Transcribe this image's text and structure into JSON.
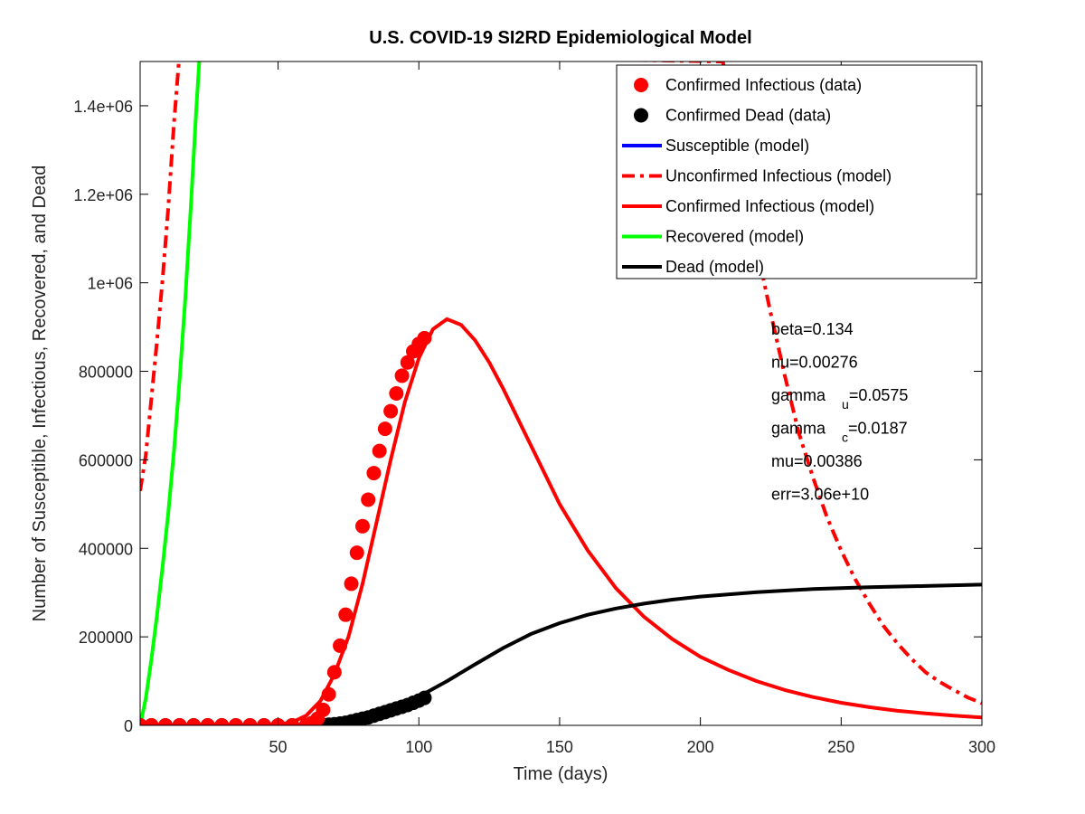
{
  "chart_data": {
    "type": "line",
    "title": "U.S. COVID-19 SI2RD Epidemiological Model",
    "xlabel": "Time (days)",
    "ylabel": "Number of Susceptible, Infectious, Recovered, and Dead",
    "xlim": [
      1,
      300
    ],
    "ylim": [
      0,
      1500000
    ],
    "x_ticks": [
      {
        "value": 50,
        "label": "50"
      },
      {
        "value": 100,
        "label": "100"
      },
      {
        "value": 150,
        "label": "150"
      },
      {
        "value": 200,
        "label": "200"
      },
      {
        "value": 250,
        "label": "250"
      },
      {
        "value": 300,
        "label": "300"
      }
    ],
    "y_ticks": [
      {
        "value": 0,
        "label": "0"
      },
      {
        "value": 200000,
        "label": "200000"
      },
      {
        "value": 400000,
        "label": "400000"
      },
      {
        "value": 600000,
        "label": "600000"
      },
      {
        "value": 800000,
        "label": "800000"
      },
      {
        "value": 1000000,
        "label": "1e+06"
      },
      {
        "value": 1200000,
        "label": "1.2e+06"
      },
      {
        "value": 1400000,
        "label": "1.4e+06"
      }
    ],
    "grid": false,
    "legend_position": "top-right",
    "series": [
      {
        "name": "Confirmed Infectious (data)",
        "kind": "markers",
        "color": "#ff0000",
        "x": [
          1,
          5,
          10,
          15,
          20,
          25,
          30,
          35,
          40,
          45,
          50,
          55,
          60,
          62,
          64,
          66,
          68,
          70,
          72,
          74,
          76,
          78,
          80,
          82,
          84,
          86,
          88,
          90,
          92,
          94,
          96,
          98,
          100,
          102
        ],
        "y": [
          0,
          0,
          0,
          0,
          0,
          0,
          0,
          0,
          0,
          0,
          0,
          0,
          1000,
          5000,
          15000,
          35000,
          70000,
          120000,
          180000,
          250000,
          320000,
          390000,
          450000,
          510000,
          570000,
          620000,
          670000,
          710000,
          750000,
          790000,
          820000,
          845000,
          862000,
          875000
        ]
      },
      {
        "name": "Confirmed Dead (data)",
        "kind": "markers",
        "color": "#000000",
        "x": [
          1,
          5,
          10,
          15,
          20,
          25,
          30,
          35,
          40,
          45,
          50,
          55,
          60,
          62,
          64,
          66,
          68,
          70,
          72,
          74,
          76,
          78,
          80,
          82,
          84,
          86,
          88,
          90,
          92,
          94,
          96,
          98,
          100,
          102
        ],
        "y": [
          0,
          0,
          0,
          0,
          0,
          0,
          0,
          0,
          0,
          0,
          0,
          0,
          0,
          100,
          300,
          700,
          1500,
          2500,
          4000,
          6000,
          9000,
          12000,
          15000,
          18000,
          22000,
          26000,
          30000,
          34000,
          38000,
          42000,
          46000,
          51000,
          56000,
          62000
        ]
      },
      {
        "name": "Susceptible (model)",
        "kind": "line",
        "color": "#0000ff",
        "x": [],
        "y": []
      },
      {
        "name": "Unconfirmed Infectious (model)",
        "kind": "dashdot",
        "color": "#ff0000",
        "x": [
          1,
          3,
          5,
          7,
          9,
          11,
          13,
          15,
          208,
          210,
          215,
          220,
          225,
          230,
          235,
          240,
          245,
          250,
          255,
          260,
          265,
          270,
          275,
          280,
          285,
          290,
          295,
          300
        ],
        "y": [
          530000,
          610000,
          740000,
          870000,
          1010000,
          1170000,
          1360000,
          1520000,
          1500000,
          1430000,
          1240000,
          1080000,
          930000,
          790000,
          660000,
          560000,
          470000,
          395000,
          330000,
          275000,
          225000,
          185000,
          150000,
          120000,
          98000,
          80000,
          63000,
          50000
        ]
      },
      {
        "name": "Confirmed Infectious (model)",
        "kind": "line",
        "color": "#ff0000",
        "x": [
          1,
          20,
          40,
          50,
          55,
          60,
          65,
          70,
          75,
          80,
          85,
          90,
          95,
          100,
          105,
          110,
          115,
          120,
          125,
          130,
          140,
          150,
          160,
          170,
          180,
          190,
          200,
          210,
          220,
          230,
          240,
          250,
          260,
          270,
          280,
          290,
          300
        ],
        "y": [
          0,
          0,
          0,
          2000,
          7000,
          22000,
          55000,
          115000,
          200000,
          320000,
          460000,
          600000,
          730000,
          830000,
          895000,
          918000,
          905000,
          870000,
          820000,
          760000,
          630000,
          500000,
          395000,
          310000,
          245000,
          195000,
          155000,
          125000,
          100000,
          80000,
          64000,
          51000,
          41000,
          33000,
          27000,
          22000,
          18000
        ]
      },
      {
        "name": "Recovered (model)",
        "kind": "line",
        "color": "#00ff00",
        "x": [
          1,
          3,
          5,
          7,
          9,
          11,
          13,
          15,
          17,
          19,
          21,
          22
        ],
        "y": [
          0,
          60000,
          150000,
          250000,
          360000,
          480000,
          620000,
          780000,
          960000,
          1170000,
          1400000,
          1500000
        ]
      },
      {
        "name": "Dead (model)",
        "kind": "line",
        "color": "#000000",
        "x": [
          1,
          20,
          40,
          60,
          65,
          70,
          75,
          80,
          85,
          90,
          95,
          100,
          110,
          120,
          130,
          140,
          150,
          160,
          170,
          180,
          190,
          200,
          220,
          240,
          260,
          280,
          300
        ],
        "y": [
          0,
          0,
          0,
          1000,
          2500,
          6000,
          14000,
          22000,
          32000,
          42000,
          53000,
          65000,
          100000,
          138000,
          175000,
          207000,
          231000,
          250000,
          264000,
          275000,
          284000,
          291000,
          301000,
          308000,
          312000,
          315000,
          318000
        ]
      }
    ],
    "parameters": [
      {
        "name": "beta",
        "sub": "",
        "value": "=0.134"
      },
      {
        "name": "nu",
        "sub": "",
        "value": "=0.00276"
      },
      {
        "name": "gamma",
        "sub": "u",
        "value": "=0.0575"
      },
      {
        "name": "gamma",
        "sub": "c",
        "value": "=0.0187"
      },
      {
        "name": "mu",
        "sub": "",
        "value": "=0.00386"
      },
      {
        "name": "err",
        "sub": "",
        "value": "=3.06e+10"
      }
    ]
  }
}
